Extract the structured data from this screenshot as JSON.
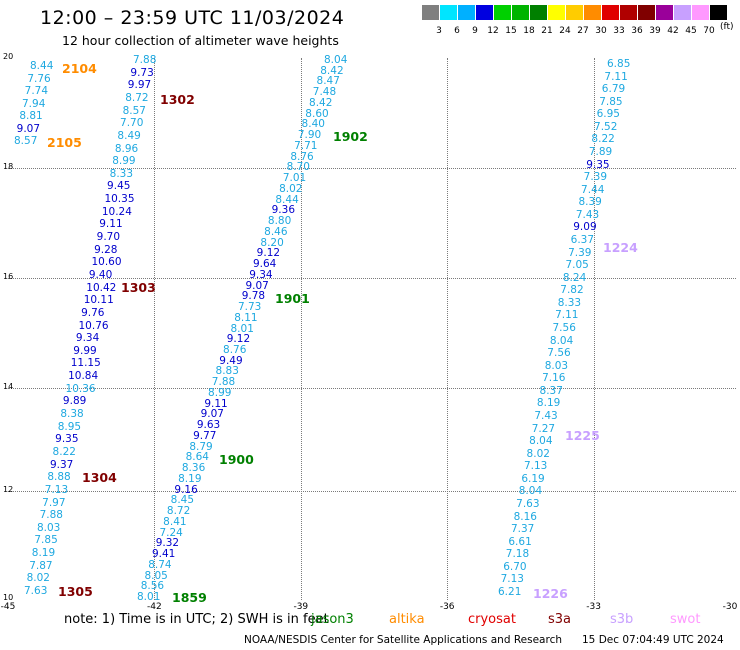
{
  "title": "12:00 – 23:59 UTC 11/03/2024",
  "subtitle": "12 hour collection of altimeter wave heights",
  "legend": {
    "unit": "(ft)",
    "swatches": [
      {
        "label": "3",
        "color": "#7f7f7f"
      },
      {
        "label": "6",
        "color": "#00e5ff"
      },
      {
        "label": "9",
        "color": "#00b0ff"
      },
      {
        "label": "12",
        "color": "#0000e0"
      },
      {
        "label": "15",
        "color": "#00d000"
      },
      {
        "label": "18",
        "color": "#00b400"
      },
      {
        "label": "21",
        "color": "#008000"
      },
      {
        "label": "24",
        "color": "#ffff00"
      },
      {
        "label": "27",
        "color": "#ffcc00"
      },
      {
        "label": "30",
        "color": "#ff8c00"
      },
      {
        "label": "33",
        "color": "#e00000"
      },
      {
        "label": "36",
        "color": "#b00000"
      },
      {
        "label": "39",
        "color": "#800000"
      },
      {
        "label": "42",
        "color": "#9a009a"
      },
      {
        "label": "45",
        "color": "#c8a0ff"
      },
      {
        "label": "70",
        "color": "#ff99ff"
      },
      {
        "label": "",
        "color": "#000000"
      }
    ]
  },
  "axes": {
    "lon_labels": [
      "-45",
      "-42",
      "-39",
      "-36",
      "-33",
      "-30"
    ],
    "lat_labels": [
      "20",
      "18",
      "16",
      "14",
      "12",
      "10"
    ]
  },
  "colors": {
    "light": "#1ea8e0",
    "dark": "#0000cc"
  },
  "tracks": [
    {
      "heights": [
        "8.44",
        "7.76",
        "7.74",
        "7.94",
        "8.81",
        "9.07",
        "8.57"
      ]
    },
    {
      "heights": [
        "7.88",
        "9.73",
        "9.97",
        "8.72",
        "8.57",
        "7.70",
        "8.49",
        "8.96",
        "8.99",
        "8.33",
        "9.45",
        "10.35",
        "10.24",
        "9.11",
        "9.70",
        "9.28",
        "10.60",
        "9.40",
        "10.42",
        "10.11",
        "9.76",
        "10.76",
        "9.34",
        "9.99",
        "11.15",
        "10.84",
        "10.36",
        "9.89",
        "8.38",
        "8.95",
        "9.35",
        "8.22",
        "9.37",
        "8.88",
        "7.13",
        "7.97",
        "7.88",
        "8.03",
        "7.85",
        "8.19",
        "7.87",
        "8.02",
        "7.63"
      ]
    },
    {
      "heights": [
        "8.04",
        "8.42",
        "8.47",
        "7.48",
        "8.42",
        "8.60",
        "8.40",
        "7.90",
        "7.71",
        "8.76",
        "8.70",
        "7.01",
        "8.02",
        "8.44",
        "9.36",
        "8.80",
        "8.46",
        "8.20",
        "9.12",
        "9.64",
        "9.34",
        "9.07",
        "9.78",
        "7.73",
        "8.11",
        "8.01",
        "9.12",
        "8.76",
        "9.49",
        "8.83",
        "7.88",
        "8.99",
        "9.11",
        "9.07",
        "9.63",
        "9.77",
        "8.79",
        "8.64",
        "8.36",
        "8.19",
        "9.16",
        "8.45",
        "8.72",
        "8.41",
        "7.24",
        "9.32",
        "9.41",
        "8.74",
        "8.05",
        "8.56",
        "8.01"
      ]
    },
    {
      "heights": [
        "6.85",
        "7.11",
        "6.79",
        "7.85",
        "6.95",
        "7.52",
        "8.22",
        "7.89",
        "9.35",
        "7.39",
        "7.44",
        "8.39",
        "7.43",
        "9.09",
        "6.37",
        "7.39",
        "7.05",
        "8.24",
        "7.82",
        "8.33",
        "7.11",
        "7.56",
        "8.04",
        "7.56",
        "8.03",
        "7.16",
        "8.37",
        "8.19",
        "7.43",
        "7.27",
        "8.04",
        "8.02",
        "7.13",
        "6.19",
        "8.04",
        "7.63",
        "8.16",
        "7.37",
        "6.61",
        "7.18",
        "6.70",
        "7.13",
        "6.21"
      ]
    }
  ],
  "passes": [
    {
      "label": "2104",
      "color": "#ff8c00"
    },
    {
      "label": "2105",
      "color": "#ff8c00"
    },
    {
      "label": "1302",
      "color": "#800000"
    },
    {
      "label": "1303",
      "color": "#800000"
    },
    {
      "label": "1304",
      "color": "#800000"
    },
    {
      "label": "1305",
      "color": "#800000"
    },
    {
      "label": "1902",
      "color": "#008000"
    },
    {
      "label": "1901",
      "color": "#008000"
    },
    {
      "label": "1900",
      "color": "#008000"
    },
    {
      "label": "1859",
      "color": "#008000"
    },
    {
      "label": "1224",
      "color": "#c8a0ff"
    },
    {
      "label": "1225",
      "color": "#c8a0ff"
    },
    {
      "label": "1226",
      "color": "#c8a0ff"
    }
  ],
  "footer": {
    "note": "note:  1) Time is in UTC;  2) SWH is in feet",
    "satellites": [
      {
        "name": "jason3",
        "color": "#008000"
      },
      {
        "name": "altika",
        "color": "#ff8c00"
      },
      {
        "name": "cryosat",
        "color": "#e00000"
      },
      {
        "name": "s3a",
        "color": "#800000"
      },
      {
        "name": "s3b",
        "color": "#c8a0ff"
      },
      {
        "name": "swot",
        "color": "#ff99ff"
      }
    ],
    "credit": "NOAA/NESDIS Center for Satellite Applications and Research",
    "timestamp": "15 Dec 07:04:49 UTC 2024"
  }
}
